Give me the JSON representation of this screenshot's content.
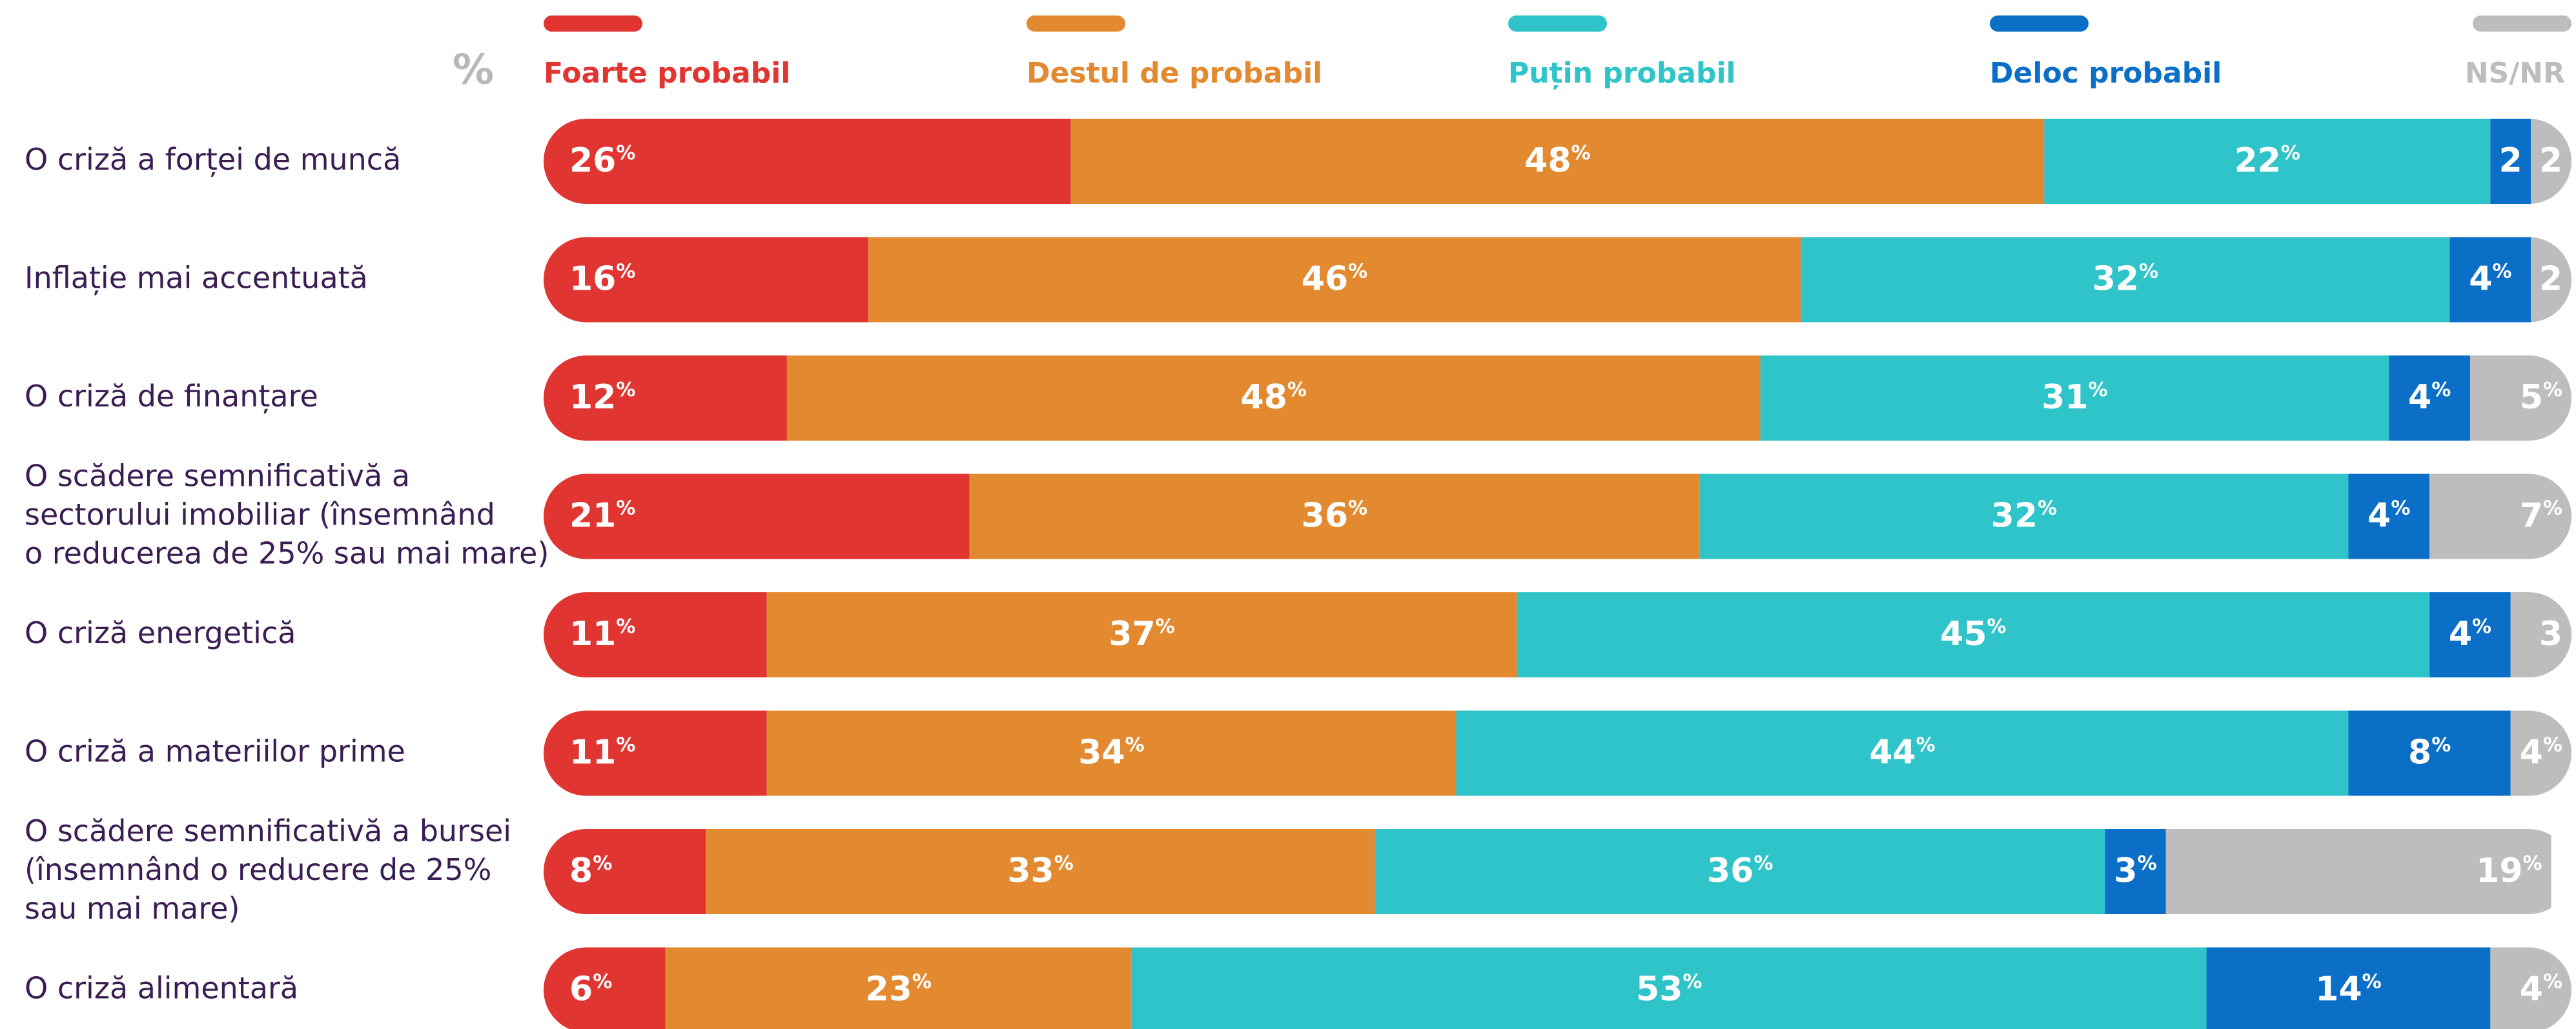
{
  "chart_data": {
    "type": "stacked-bar-horizontal",
    "unit_label": "%",
    "categories": [
      "O criză a forței de muncă",
      "Inflație mai accentuată",
      "O criză de finanțare",
      "O scădere semnificativă a\nsectorului imobiliar (însemnând\no reducerea de 25% sau mai mare)",
      "O criză energetică",
      "O criză a materiilor prime",
      "O scădere semnificativă a bursei\n(însemnând o reducere de 25%\nsau mai mare)",
      "O criză alimentară"
    ],
    "xlim": [
      0,
      100
    ],
    "series": [
      {
        "name": "Foarte probabil",
        "color": "#e03531",
        "values": [
          26,
          16,
          12,
          21,
          11,
          11,
          8,
          6
        ],
        "value_labels": [
          "26%",
          "16%",
          "12%",
          "21%",
          "11%",
          "11%",
          "8%",
          "6%"
        ]
      },
      {
        "name": "Destul de probabil",
        "color": "#e38a31",
        "values": [
          48,
          46,
          48,
          36,
          37,
          34,
          33,
          23
        ],
        "value_labels": [
          "48%",
          "46%",
          "48%",
          "36%",
          "37%",
          "34%",
          "33%",
          "23%"
        ]
      },
      {
        "name": "Puțin probabil",
        "color": "#2ec4c9",
        "values": [
          22,
          32,
          31,
          32,
          45,
          44,
          36,
          53
        ],
        "value_labels": [
          "22%",
          "32%",
          "31%",
          "32%",
          "45%",
          "44%",
          "36%",
          "53%"
        ]
      },
      {
        "name": "Deloc probabil",
        "color": "#0b6fc7",
        "values": [
          2,
          4,
          4,
          4,
          4,
          8,
          3,
          14
        ],
        "value_labels": [
          "2",
          "4%",
          "4%",
          "4%",
          "4%",
          "8%",
          "3%",
          "14%"
        ]
      },
      {
        "name": "NS/NR",
        "color": "#bdbdbd",
        "values": [
          2,
          2,
          5,
          7,
          3,
          4,
          19,
          4
        ],
        "value_labels": [
          "2",
          "2",
          "5%",
          "7%",
          "3",
          "4%",
          "19%",
          "4%"
        ]
      }
    ]
  }
}
